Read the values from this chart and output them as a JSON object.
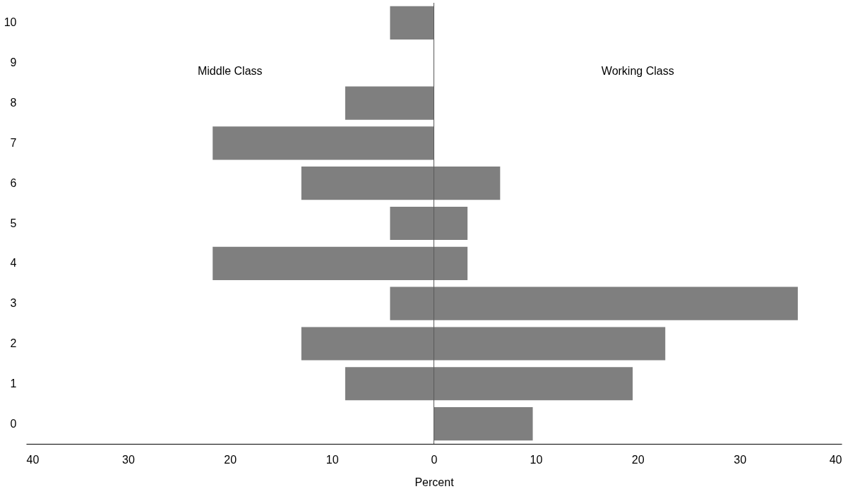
{
  "chart_data": {
    "type": "bar",
    "orientation": "horizontal",
    "xlabel": "Percent",
    "categories": [
      "10",
      "9",
      "8",
      "7",
      "6",
      "5",
      "4",
      "3",
      "2",
      "1",
      "0"
    ],
    "series": [
      {
        "color": "#7f7f7f",
        "values": [
          -4.3,
          null,
          -8.7,
          -21.7,
          -13.0,
          -4.3,
          -21.7,
          -4.3,
          -13.0,
          -8.7,
          null
        ]
      },
      {
        "color": "#7f7f7f",
        "values": [
          null,
          null,
          null,
          null,
          6.5,
          3.3,
          3.3,
          35.7,
          22.7,
          19.5,
          9.7
        ]
      }
    ],
    "xlim": [
      -40,
      40
    ],
    "xticks": [
      {
        "value": -40,
        "label": "40"
      },
      {
        "value": -30,
        "label": "30"
      },
      {
        "value": -20,
        "label": "20"
      },
      {
        "value": -10,
        "label": "10"
      },
      0,
      10,
      20,
      30,
      40
    ],
    "ref_lines": [
      {
        "axis": "x",
        "value": 0,
        "color": "#595959"
      }
    ],
    "annotations": [
      "Middle Class",
      "Working Class"
    ],
    "stacked": true,
    "grid": false,
    "legend": false
  }
}
